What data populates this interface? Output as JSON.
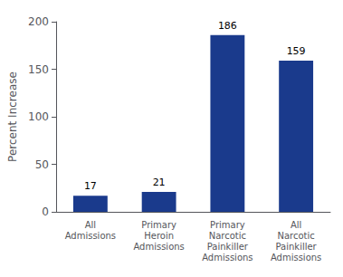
{
  "chart_data": {
    "type": "bar",
    "categories": [
      "All\nAdmissions",
      "Primary\nHeroin\nAdmissions",
      "Primary\nNarcotic\nPainkiller\nAdmissions",
      "All\nNarcotic\nPainkiller\nAdmissions"
    ],
    "values": [
      17,
      21,
      186,
      159
    ],
    "color": "#1a3a8c",
    "ylabel": "Percent Increase",
    "ylim": [
      0,
      200
    ],
    "yticks": [
      0,
      50,
      100,
      150,
      200
    ],
    "data_labels": true,
    "grid": false
  }
}
